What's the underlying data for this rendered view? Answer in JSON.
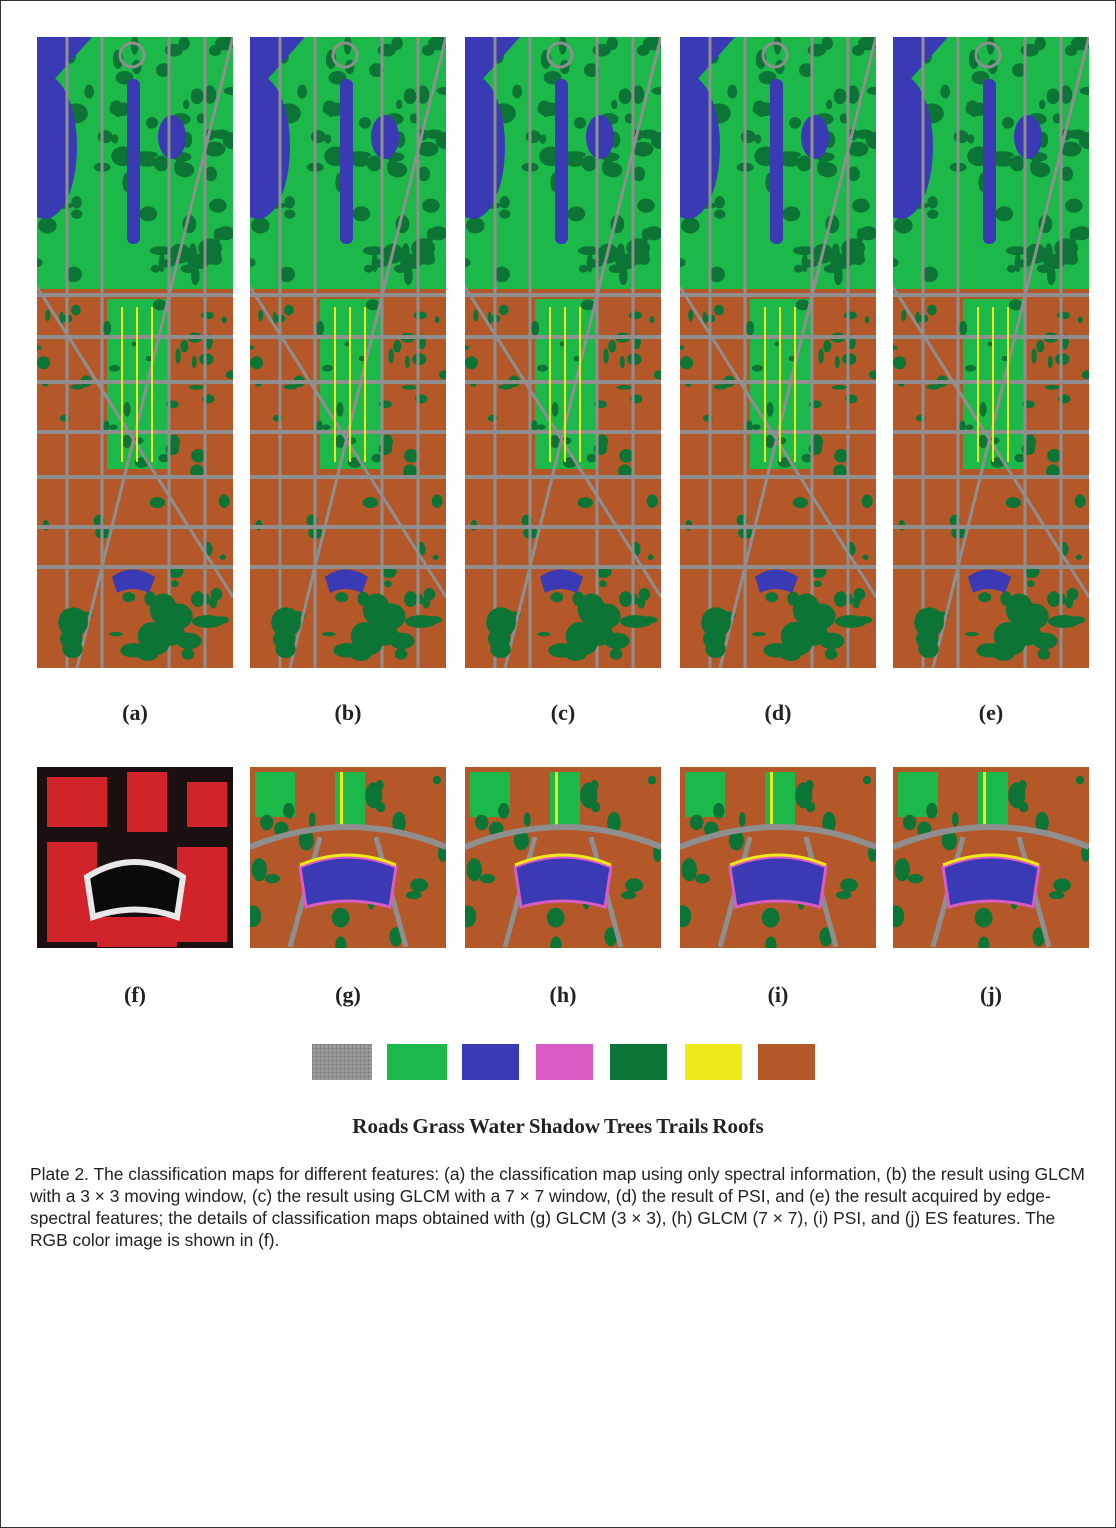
{
  "panels_top": [
    "(a)",
    "(b)",
    "(c)",
    "(d)",
    "(e)"
  ],
  "panels_bottom": [
    "(f)",
    "(g)",
    "(h)",
    "(i)",
    "(j)"
  ],
  "legend": [
    "Roads",
    "Grass",
    "Water",
    "Shadow",
    "Trees",
    "Trails",
    "Roofs"
  ],
  "caption": "Plate 2. The classification maps for different features: (a) the classification map using only spectral information, (b) the result using GLCM with a 3 × 3 moving window, (c) the result using GLCM with a 7 × 7 window, (d) the result of PSI, and (e) the result acquired by edge-spectral features; the details of classification maps obtained with (g) GLCM (3 × 3), (h) GLCM (7 × 7), (i) PSI, and (j) ES features. The RGB color image is shown in (f)."
}
